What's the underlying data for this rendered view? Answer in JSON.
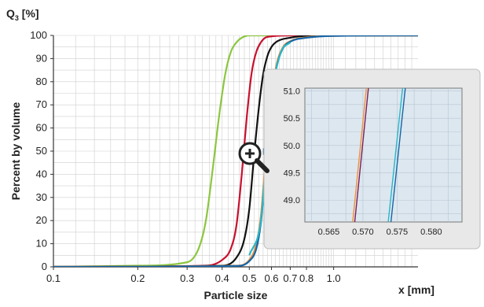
{
  "chart_data": {
    "type": "line",
    "y_unit_label_main": "Q",
    "y_unit_label_sub": "3",
    "y_unit_label_suffix": " [%]",
    "ylabel": "Percent by volume",
    "xlabel": "Particle size",
    "x_unit_label": "x [mm]",
    "x_scale": "log",
    "ylim": [
      0,
      100
    ],
    "xlim": [
      0.1,
      2.0
    ],
    "x_ticks": [
      0.1,
      0.2,
      0.3,
      0.4,
      0.5,
      0.6,
      0.7,
      0.8,
      1.0
    ],
    "x_tick_labels": [
      "0.1",
      "0.2",
      "0.3",
      "0.4",
      "0.5",
      "0.6",
      "0.7",
      "0.8",
      "1.0"
    ],
    "y_ticks": [
      0,
      10,
      20,
      30,
      40,
      50,
      60,
      70,
      80,
      90,
      100
    ],
    "y_tick_labels": [
      "0",
      "10",
      "20",
      "30",
      "40",
      "50",
      "60",
      "70",
      "80",
      "90",
      "100"
    ],
    "grid": true,
    "series": [
      {
        "color": "#8cc63f",
        "x": [
          0.1,
          0.2,
          0.3,
          0.33,
          0.35,
          0.37,
          0.39,
          0.41,
          0.43,
          0.45,
          0.47,
          0.5,
          0.6,
          2.0
        ],
        "y": [
          0,
          0.5,
          2,
          8,
          20,
          42,
          65,
          83,
          93,
          97,
          99,
          100,
          100,
          100
        ]
      },
      {
        "color": "#c8102e",
        "x": [
          0.1,
          0.35,
          0.4,
          0.43,
          0.45,
          0.47,
          0.49,
          0.51,
          0.53,
          0.55,
          0.57,
          0.6,
          0.7,
          2.0
        ],
        "y": [
          0,
          0.5,
          3,
          8,
          18,
          40,
          65,
          84,
          93,
          97,
          99,
          99.6,
          100,
          100
        ]
      },
      {
        "color": "#111111",
        "x": [
          0.1,
          0.4,
          0.45,
          0.48,
          0.5,
          0.52,
          0.54,
          0.56,
          0.58,
          0.6,
          0.63,
          0.7,
          0.8,
          2.0
        ],
        "y": [
          0,
          0.5,
          4,
          12,
          25,
          48,
          68,
          83,
          91,
          95,
          97.5,
          99,
          99.8,
          100
        ]
      },
      {
        "color": "#f0913a",
        "x": [
          0.1,
          0.45,
          0.5,
          0.53,
          0.55,
          0.57,
          0.59,
          0.61,
          0.63,
          0.66,
          0.7,
          0.8,
          1.0,
          2.0
        ],
        "y": [
          0,
          0.5,
          3,
          10,
          22,
          45,
          65,
          80,
          89,
          95,
          97.5,
          99.2,
          99.8,
          100
        ]
      },
      {
        "color": "#1565a8",
        "x": [
          0.1,
          0.45,
          0.5,
          0.53,
          0.55,
          0.57,
          0.59,
          0.61,
          0.63,
          0.66,
          0.7,
          0.8,
          1.0,
          2.0
        ],
        "y": [
          0,
          0.4,
          2.5,
          8,
          19,
          40,
          62,
          78,
          88,
          94.5,
          97.3,
          99,
          99.8,
          100
        ]
      },
      {
        "color": "#29b6c8",
        "x": [
          0.5,
          0.55,
          0.57,
          0.59,
          0.61,
          0.65,
          0.7
        ],
        "y": [
          5,
          20,
          42,
          63,
          79,
          93,
          97
        ]
      }
    ],
    "inset": {
      "xlim": [
        0.5615,
        0.5845
      ],
      "ylim": [
        48.6,
        51.05
      ],
      "x_ticks": [
        0.565,
        0.57,
        0.575,
        0.58
      ],
      "x_tick_labels": [
        "0.565",
        "0.570",
        "0.575",
        "0.580"
      ],
      "y_ticks": [
        49.0,
        49.5,
        50.0,
        50.5,
        51.0
      ],
      "y_tick_labels": [
        "49.0",
        "49.5",
        "50.0",
        "50.5",
        "51.0"
      ],
      "series": [
        {
          "color": "#f0913a",
          "x": [
            0.5685,
            0.5705
          ],
          "y": [
            48.6,
            51.05
          ]
        },
        {
          "color": "#7b1f5a",
          "x": [
            0.5688,
            0.5708
          ],
          "y": [
            48.6,
            51.05
          ]
        },
        {
          "color": "#29b6c8",
          "x": [
            0.5737,
            0.5758
          ],
          "y": [
            48.6,
            51.05
          ]
        },
        {
          "color": "#1565a8",
          "x": [
            0.5741,
            0.5762
          ],
          "y": [
            48.6,
            51.05
          ]
        }
      ],
      "zoom_region": {
        "x": [
          0.5615,
          0.5845
        ],
        "y": [
          48.6,
          51.05
        ]
      }
    },
    "colors": {
      "grid": "#cfcfcf",
      "inset_bg": "#dde7ef",
      "inset_frame": "#e8e8e8",
      "inset_border": "#bdbdbd",
      "connector": "#2e6da4",
      "icon": "#222222"
    }
  }
}
